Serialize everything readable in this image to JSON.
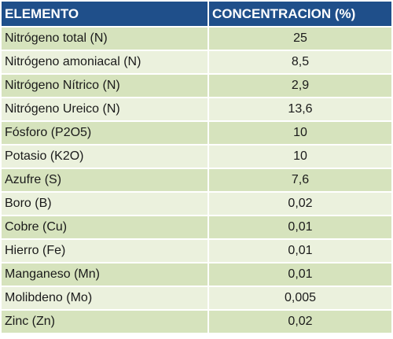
{
  "table": {
    "headers": {
      "element": "ELEMENTO",
      "concentration": "CONCENTRACION (%)"
    },
    "rows": [
      {
        "element": "Nitrógeno total (N)",
        "value": "25"
      },
      {
        "element": "Nitrógeno amoniacal (N)",
        "value": "8,5"
      },
      {
        "element": "Nitrógeno Nítrico (N)",
        "value": "2,9"
      },
      {
        "element": "Nitrógeno Ureico (N)",
        "value": "13,6"
      },
      {
        "element": "Fósforo (P2O5)",
        "value": "10"
      },
      {
        "element": "Potasio (K2O)",
        "value": "10"
      },
      {
        "element": "Azufre (S)",
        "value": "7,6"
      },
      {
        "element": "Boro (B)",
        "value": "0,02"
      },
      {
        "element": "Cobre (Cu)",
        "value": "0,01"
      },
      {
        "element": "Hierro (Fe)",
        "value": "0,01"
      },
      {
        "element": "Manganeso (Mn)",
        "value": "0,01"
      },
      {
        "element": "Molibdeno (Mo)",
        "value": "0,005"
      },
      {
        "element": "Zinc (Zn)",
        "value": "0,02"
      }
    ]
  },
  "colors": {
    "header_bg": "#1f4f8a",
    "header_text": "#ffffff",
    "row_dark": "#d6e3bd",
    "row_light": "#ebf1dd"
  }
}
